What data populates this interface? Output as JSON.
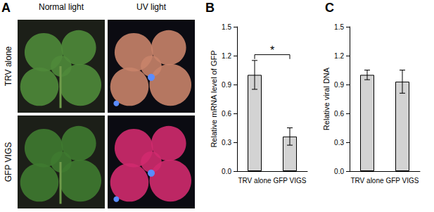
{
  "photo_panel": {
    "label": "A",
    "columns": [
      "Normal light",
      "UV light"
    ],
    "rows": [
      "TRV alone",
      "GFP VIGS"
    ]
  },
  "chart_data": [
    {
      "type": "bar",
      "title": "B",
      "y_label": "Relative mRNA level of GFP",
      "categories": [
        "TRV alone",
        "GFP VIGS"
      ],
      "values": [
        1.0,
        0.36
      ],
      "errors": [
        0.15,
        0.09
      ],
      "color": "#d3d3d3",
      "ylim": [
        0,
        1.5
      ],
      "yticks": [
        {
          "value": 0,
          "label": "0.0"
        },
        0.3,
        0.6,
        0.9,
        1.2,
        1.5
      ],
      "grid": false,
      "annotations": [
        {
          "text": "*",
          "from": "TRV alone",
          "to": "GFP VIGS"
        }
      ]
    },
    {
      "type": "bar",
      "title": "C",
      "y_label": "Relative viral DNA",
      "categories": [
        "TRV alone",
        "GFP VIGS"
      ],
      "values": [
        1.0,
        0.93
      ],
      "errors": [
        0.05,
        0.12
      ],
      "color": "#d3d3d3",
      "ylim": [
        0,
        1.5
      ],
      "yticks": [
        {
          "value": 0,
          "label": "0.0"
        },
        0.3,
        0.6,
        0.9,
        1.2,
        1.5
      ],
      "grid": false
    }
  ]
}
